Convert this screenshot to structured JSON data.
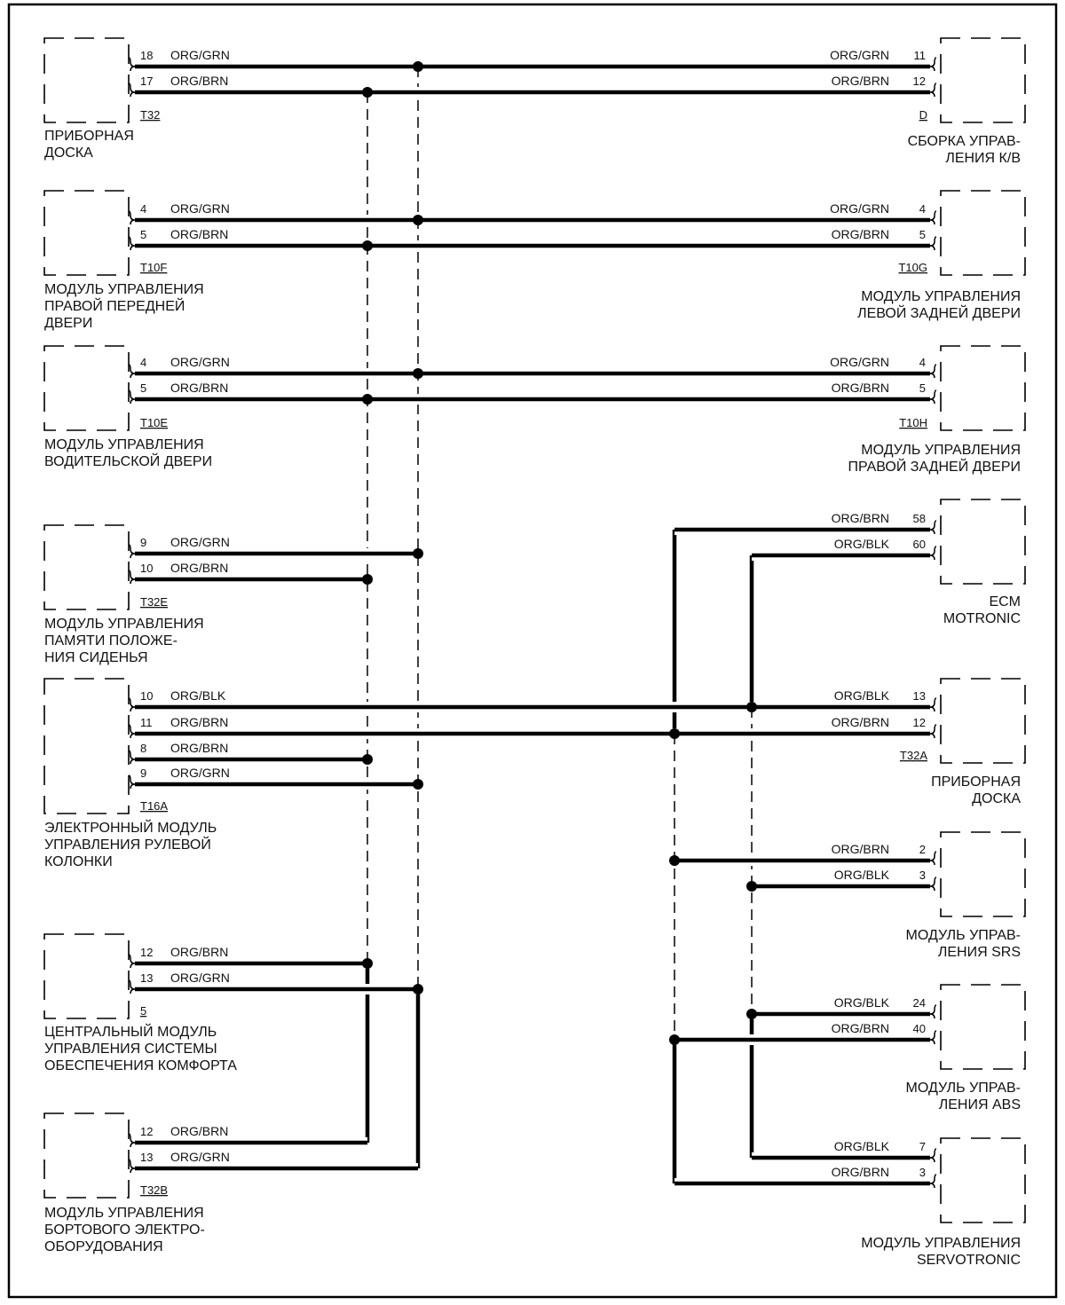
{
  "diagram": {
    "left_components": [
      {
        "label": [
          "ПРИБОРНАЯ",
          "ДОСКА"
        ],
        "connector": "T32",
        "pins": [
          {
            "pin": "18",
            "wire": "ORG/GRN"
          },
          {
            "pin": "17",
            "wire": "ORG/BRN"
          }
        ]
      },
      {
        "label": [
          "МОДУЛЬ УПРАВЛЕНИЯ",
          "ПРАВОЙ ПЕРЕДНЕЙ",
          "ДВЕРИ"
        ],
        "connector": "T10F",
        "pins": [
          {
            "pin": "4",
            "wire": "ORG/GRN"
          },
          {
            "pin": "5",
            "wire": "ORG/BRN"
          }
        ]
      },
      {
        "label": [
          "МОДУЛЬ УПРАВЛЕНИЯ",
          "ВОДИТЕЛЬСКОЙ ДВЕРИ"
        ],
        "connector": "T10E",
        "pins": [
          {
            "pin": "4",
            "wire": "ORG/GRN"
          },
          {
            "pin": "5",
            "wire": "ORG/BRN"
          }
        ]
      },
      {
        "label": [
          "МОДУЛЬ УПРАВЛЕНИЯ",
          "ПАМЯТИ  ПОЛОЖЕ-",
          "НИЯ СИДЕНЬЯ"
        ],
        "connector": "T32E",
        "pins": [
          {
            "pin": "9",
            "wire": "ORG/GRN"
          },
          {
            "pin": "10",
            "wire": "ORG/BRN"
          }
        ]
      },
      {
        "label": [
          "ЭЛЕКТРОННЫЙ МОДУЛЬ",
          "УПРАВЛЕНИЯ РУЛЕВОЙ",
          "КОЛОНКИ"
        ],
        "connector": "T16A",
        "pins": [
          {
            "pin": "10",
            "wire": "ORG/BLK"
          },
          {
            "pin": "11",
            "wire": "ORG/BRN"
          },
          {
            "pin": "8",
            "wire": "ORG/BRN"
          },
          {
            "pin": "9",
            "wire": "ORG/GRN"
          }
        ]
      },
      {
        "label": [
          "ЦЕНТРАЛЬНЫЙ МОДУЛЬ",
          "УПРАВЛЕНИЯ СИСТЕМЫ",
          "ОБЕСПЕЧЕНИЯ КОМФОРТА"
        ],
        "connector": "5",
        "pins": [
          {
            "pin": "12",
            "wire": "ORG/BRN"
          },
          {
            "pin": "13",
            "wire": "ORG/GRN"
          }
        ]
      },
      {
        "label": [
          "МОДУЛЬ УПРАВЛЕНИЯ",
          "БОРТОВОГО ЭЛЕКТРО-",
          "ОБОРУДОВАНИЯ"
        ],
        "connector": "T32B",
        "pins": [
          {
            "pin": "12",
            "wire": "ORG/BRN"
          },
          {
            "pin": "13",
            "wire": "ORG/GRN"
          }
        ]
      }
    ],
    "right_components": [
      {
        "label": [
          "СБОРКА УПРАВ-",
          "ЛЕНИЯ К/В"
        ],
        "connector": "D",
        "pins": [
          {
            "pin": "11",
            "wire": "ORG/GRN"
          },
          {
            "pin": "12",
            "wire": "ORG/BRN"
          }
        ]
      },
      {
        "label": [
          "МОДУЛЬ УПРАВЛЕНИЯ",
          "ЛЕВОЙ ЗАДНЕЙ ДВЕРИ"
        ],
        "connector": "T10G",
        "pins": [
          {
            "pin": "4",
            "wire": "ORG/GRN"
          },
          {
            "pin": "5",
            "wire": "ORG/BRN"
          }
        ]
      },
      {
        "label": [
          "МОДУЛЬ УПРАВЛЕНИЯ",
          "ПРАВОЙ ЗАДНЕЙ ДВЕРИ"
        ],
        "connector": "T10H",
        "pins": [
          {
            "pin": "4",
            "wire": "ORG/GRN"
          },
          {
            "pin": "5",
            "wire": "ORG/BRN"
          }
        ]
      },
      {
        "label": [
          "ECM",
          "MOTRONIC"
        ],
        "connector": "",
        "pins": [
          {
            "pin": "58",
            "wire": "ORG/BRN"
          },
          {
            "pin": "60",
            "wire": "ORG/BLK"
          }
        ]
      },
      {
        "label": [
          "ПРИБОРНАЯ",
          "ДОСКА"
        ],
        "connector": "T32A",
        "pins": [
          {
            "pin": "13",
            "wire": "ORG/BLK"
          },
          {
            "pin": "12",
            "wire": "ORG/BRN"
          }
        ]
      },
      {
        "label": [
          "МОДУЛЬ УПРАВ-",
          "ЛЕНИЯ SRS"
        ],
        "connector": "",
        "pins": [
          {
            "pin": "2",
            "wire": "ORG/BRN"
          },
          {
            "pin": "3",
            "wire": "ORG/BLK"
          }
        ]
      },
      {
        "label": [
          "МОДУЛЬ УПРАВ-",
          "ЛЕНИЯ ABS"
        ],
        "connector": "",
        "pins": [
          {
            "pin": "24",
            "wire": "ORG/BLK"
          },
          {
            "pin": "40",
            "wire": "ORG/BRN"
          }
        ]
      },
      {
        "label": [
          "МОДУЛЬ УПРАВЛЕНИЯ",
          "SERVOTRONIC"
        ],
        "connector": "",
        "pins": [
          {
            "pin": "7",
            "wire": "ORG/BLK"
          },
          {
            "pin": "3",
            "wire": "ORG/BRN"
          }
        ]
      }
    ]
  }
}
